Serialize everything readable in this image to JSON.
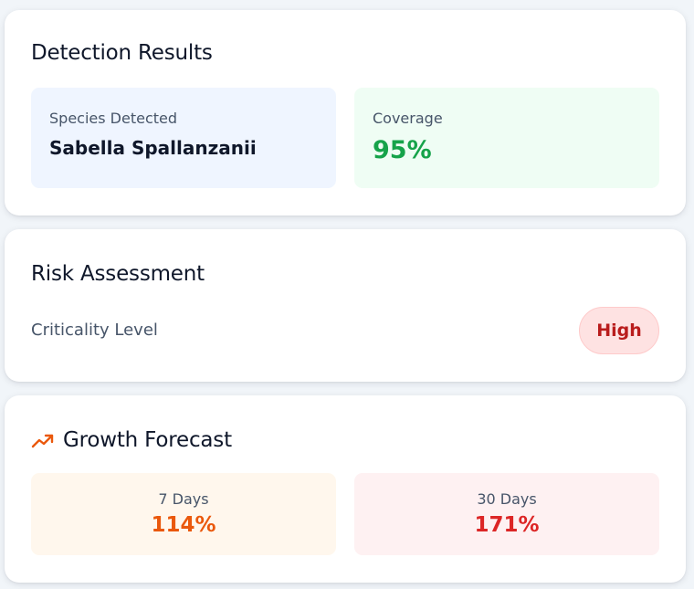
{
  "detection": {
    "title": "Detection Results",
    "species_label": "Species Detected",
    "species_value": "Sabella Spallanzanii",
    "coverage_label": "Coverage",
    "coverage_value": "95%"
  },
  "risk": {
    "title": "Risk Assessment",
    "criticality_label": "Criticality Level",
    "criticality_value": "High"
  },
  "growth": {
    "icon": "trending-up-icon",
    "title": "Growth Forecast",
    "forecasts": [
      {
        "label": "7 Days",
        "value": "114%"
      },
      {
        "label": "30 Days",
        "value": "171%"
      }
    ]
  },
  "colors": {
    "background": "#f1f5f9",
    "coverage_green": "#16a34a",
    "risk_red": "#b91c1c",
    "forecast_orange": "#ea580c",
    "forecast_red": "#dc2626",
    "icon_orange": "#ea580c"
  }
}
